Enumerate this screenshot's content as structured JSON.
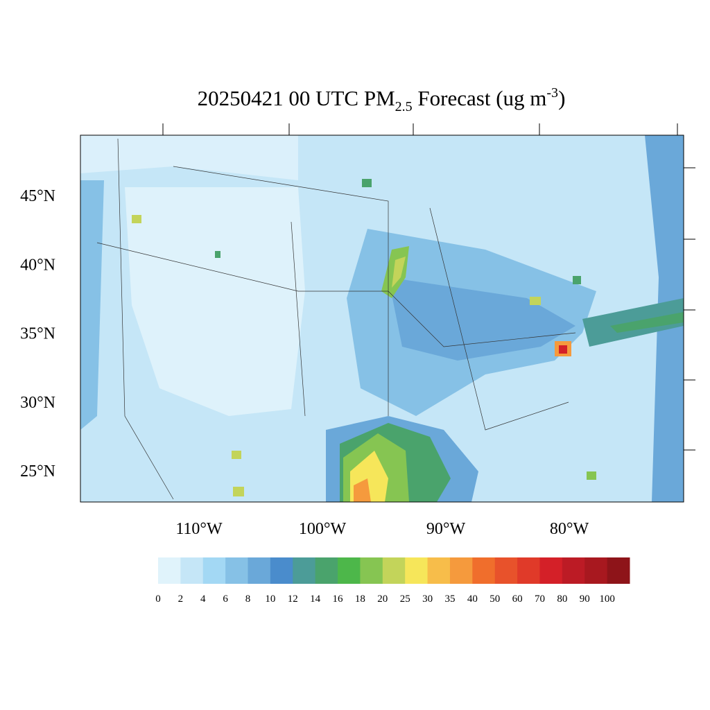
{
  "title": {
    "main": "20250421 00 UTC PM",
    "sub": "2.5",
    "rest": " Forecast (ug m",
    "sup": "-3",
    "end": ")"
  },
  "lat_labels": [
    "45°N",
    "40°N",
    "35°N",
    "30°N",
    "25°N"
  ],
  "lon_labels": [
    "110°W",
    "100°W",
    "90°W",
    "80°W"
  ],
  "colorbar": {
    "labels": [
      0,
      2,
      4,
      6,
      8,
      10,
      12,
      14,
      16,
      18,
      20,
      25,
      30,
      35,
      40,
      50,
      60,
      70,
      80,
      90,
      100
    ],
    "colors": [
      "#e0f3fb",
      "#c5e6f7",
      "#a3d8f4",
      "#86c1e6",
      "#6aa8d9",
      "#4a8ccc",
      "#4c9c98",
      "#4aa36c",
      "#4db74a",
      "#86c552",
      "#c3d45a",
      "#f6e65a",
      "#f7bd4a",
      "#f59a3d",
      "#f06e2c",
      "#e8522b",
      "#e03a29",
      "#d42028",
      "#bc1b25",
      "#a8181f",
      "#8e1419"
    ]
  }
}
